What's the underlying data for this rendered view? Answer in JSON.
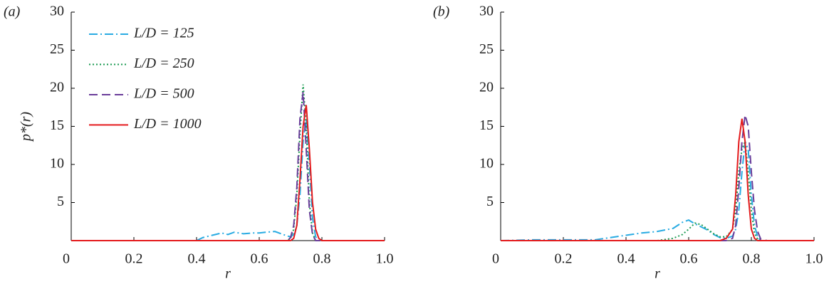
{
  "chart_data": [
    {
      "type": "line",
      "label": "(a)",
      "xlabel": "r",
      "ylabel": "p*(r)",
      "xlim": [
        0,
        1
      ],
      "ylim": [
        0,
        30
      ],
      "xticks": [
        0,
        0.2,
        0.4,
        0.6,
        0.8,
        {
          "value": 1,
          "label": "1.0"
        }
      ],
      "yticks": [
        5,
        10,
        15,
        20,
        25,
        30
      ],
      "legend": "upper left",
      "x": [
        0,
        0.1,
        0.2,
        0.3,
        0.4,
        0.42,
        0.45,
        0.48,
        0.5,
        0.52,
        0.55,
        0.58,
        0.6,
        0.62,
        0.65,
        0.67,
        0.69,
        0.7,
        0.71,
        0.72,
        0.73,
        0.74,
        0.75,
        0.76,
        0.77,
        0.78,
        0.79,
        0.8,
        0.85,
        0.9,
        1
      ],
      "series": [
        {
          "name": "L/D = 125",
          "color": "#29abe2",
          "style": "dashdot",
          "values": [
            0,
            0,
            0,
            0,
            0,
            0.4,
            0.7,
            1.0,
            0.8,
            1.1,
            0.9,
            1.0,
            1.0,
            1.1,
            1.2,
            0.9,
            0.6,
            0.5,
            0.8,
            2,
            6,
            13,
            16,
            10,
            3,
            0.5,
            0,
            0,
            0,
            0,
            0
          ]
        },
        {
          "name": "L/D = 250",
          "color": "#1a9a50",
          "style": "dotted",
          "values": [
            0,
            0,
            0,
            0,
            0,
            0,
            0,
            0,
            0,
            0,
            0,
            0,
            0,
            0,
            0,
            0,
            0,
            0.3,
            1.5,
            6,
            14,
            20.5,
            15,
            5,
            1,
            0,
            0,
            0,
            0,
            0,
            0
          ]
        },
        {
          "name": "L/D = 500",
          "color": "#6a3d9a",
          "style": "dashed",
          "values": [
            0,
            0,
            0,
            0,
            0,
            0,
            0,
            0,
            0,
            0,
            0,
            0,
            0,
            0,
            0,
            0,
            0,
            0.4,
            2,
            7,
            16,
            19.5,
            12,
            4,
            0.8,
            0,
            0,
            0,
            0,
            0,
            0
          ]
        },
        {
          "name": "L/D = 1000",
          "color": "#e41a1c",
          "style": "solid",
          "values": [
            0,
            0,
            0,
            0,
            0,
            0,
            0,
            0,
            0,
            0,
            0,
            0,
            0,
            0,
            0,
            0,
            0,
            0,
            0.3,
            2,
            8,
            15,
            17.8,
            12,
            5,
            1.5,
            0.3,
            0,
            0,
            0,
            0
          ]
        }
      ]
    },
    {
      "type": "line",
      "label": "(b)",
      "xlabel": "r",
      "xlim": [
        0,
        1
      ],
      "ylim": [
        0,
        30
      ],
      "xticks": [
        0,
        0.2,
        0.4,
        0.6,
        0.8,
        {
          "value": 1,
          "label": "1.0"
        }
      ],
      "yticks": [
        5,
        10,
        15,
        20,
        25,
        30
      ],
      "x": [
        0,
        0.1,
        0.2,
        0.3,
        0.35,
        0.4,
        0.45,
        0.5,
        0.55,
        0.58,
        0.6,
        0.62,
        0.64,
        0.66,
        0.68,
        0.7,
        0.72,
        0.74,
        0.75,
        0.76,
        0.77,
        0.78,
        0.79,
        0.8,
        0.81,
        0.82,
        0.83,
        0.85,
        0.9,
        1
      ],
      "series": [
        {
          "color": "#29abe2",
          "style": "dashdot",
          "values": [
            0,
            0.1,
            0.1,
            0.1,
            0.4,
            0.7,
            1.0,
            1.2,
            1.6,
            2.4,
            2.7,
            2.2,
            1.8,
            1.4,
            0.8,
            0.4,
            0.3,
            0.6,
            1.5,
            4,
            9,
            13,
            12,
            6,
            2,
            0.5,
            0,
            0,
            0,
            0
          ]
        },
        {
          "color": "#1a9a50",
          "style": "dotted",
          "values": [
            0,
            0,
            0,
            0,
            0,
            0,
            0,
            0,
            0.3,
            0.8,
            1.5,
            2.3,
            2.1,
            1.5,
            0.9,
            0.5,
            0.5,
            1.5,
            4,
            9,
            12,
            13,
            9,
            4,
            1,
            0.2,
            0,
            0,
            0,
            0
          ]
        },
        {
          "color": "#6a3d9a",
          "style": "dashed",
          "values": [
            0,
            0,
            0,
            0,
            0,
            0,
            0,
            0,
            0,
            0,
            0,
            0,
            0,
            0,
            0,
            0,
            0,
            0.3,
            2,
            7,
            13,
            16.5,
            15,
            9,
            4,
            1.2,
            0.2,
            0,
            0,
            0
          ]
        },
        {
          "color": "#e41a1c",
          "style": "solid",
          "values": [
            0,
            0,
            0,
            0,
            0,
            0,
            0,
            0,
            0,
            0,
            0,
            0,
            0,
            0,
            0,
            0,
            0.3,
            1.5,
            6,
            13,
            16,
            13,
            6,
            1.5,
            0.3,
            0,
            0,
            0,
            0,
            0
          ]
        }
      ]
    }
  ]
}
